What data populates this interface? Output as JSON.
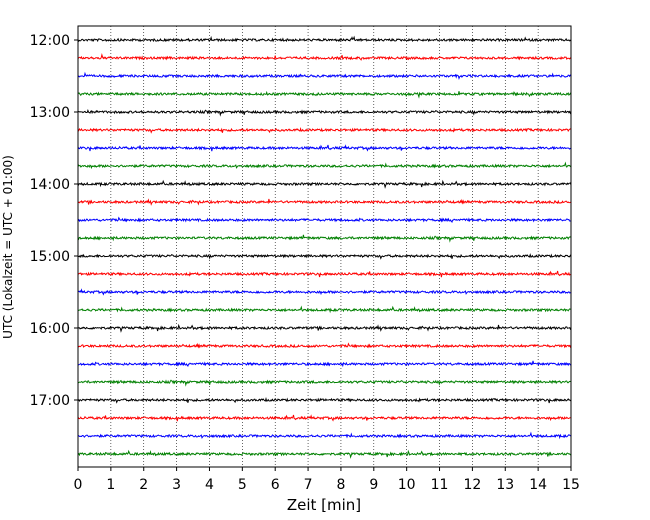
{
  "chart_data": {
    "type": "line",
    "title": "",
    "xlabel": "Zeit  [min]",
    "ylabel": "UTC (Lokalzeit = UTC + 01:00)",
    "xlim": [
      0,
      15
    ],
    "x_ticks": [
      0,
      1,
      2,
      3,
      4,
      5,
      6,
      7,
      8,
      9,
      10,
      11,
      12,
      13,
      14,
      15
    ],
    "y_tick_labels": [
      "12:00",
      "13:00",
      "14:00",
      "15:00",
      "16:00",
      "17:00"
    ],
    "traces_per_hour": 4,
    "trace_start_times": [
      "12:00",
      "12:15",
      "12:30",
      "12:45",
      "13:00",
      "13:15",
      "13:30",
      "13:45",
      "14:00",
      "14:15",
      "14:30",
      "14:45",
      "15:00",
      "15:15",
      "15:30",
      "15:45",
      "16:00",
      "16:15",
      "16:30",
      "16:45",
      "17:00",
      "17:15",
      "17:30",
      "17:45"
    ],
    "trace_colors": [
      "#000000",
      "#ff0000",
      "#0000ff",
      "#008000"
    ],
    "vertical_grid": "dotted",
    "legend": "none"
  }
}
